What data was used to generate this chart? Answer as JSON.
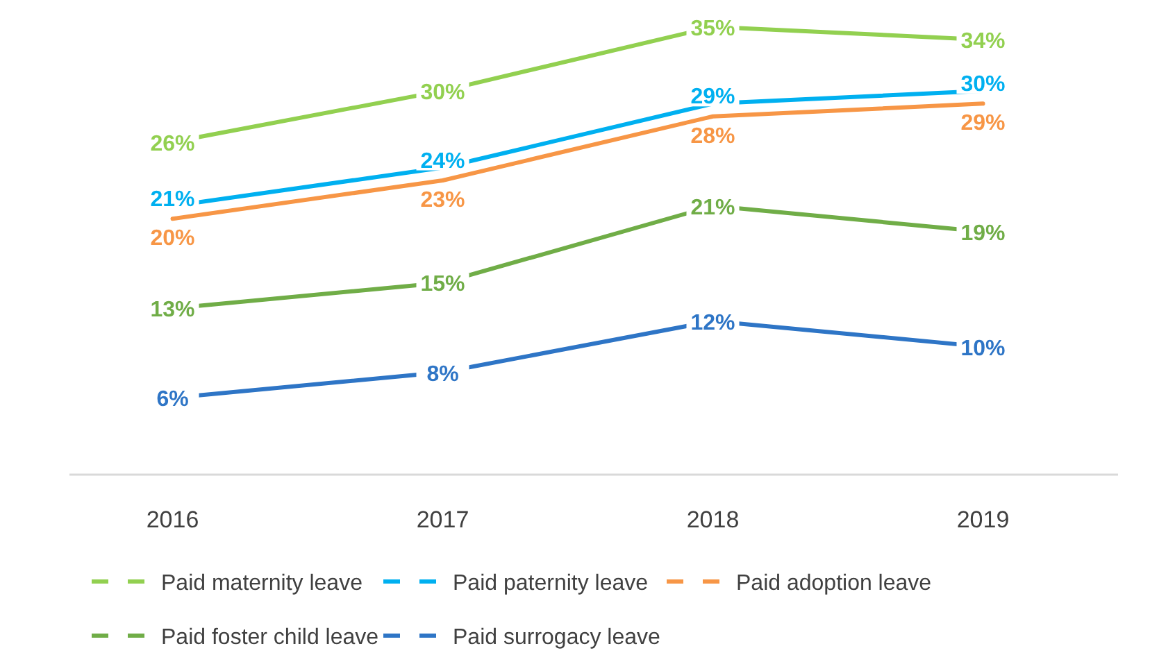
{
  "chart_data": {
    "type": "line",
    "categories": [
      "2016",
      "2017",
      "2018",
      "2019"
    ],
    "tick_labels": "x",
    "legend": "bottom",
    "series": [
      {
        "name": "Paid maternity leave",
        "color": "#92d050",
        "values": [
          26,
          30,
          35,
          34
        ],
        "value_labels": [
          "26%",
          "30%",
          "35%",
          "34%"
        ]
      },
      {
        "name": "Paid paternity leave",
        "color": "#00b0f0",
        "values": [
          21,
          24,
          29,
          30
        ],
        "value_labels": [
          "21%",
          "24%",
          "29%",
          "30%"
        ]
      },
      {
        "name": "Paid adoption leave",
        "color": "#f79646",
        "values": [
          20,
          23,
          28,
          29
        ],
        "value_labels": [
          "20%",
          "23%",
          "28%",
          "29%"
        ]
      },
      {
        "name": "Paid foster child leave",
        "color": "#70ad47",
        "values": [
          13,
          15,
          21,
          19
        ],
        "value_labels": [
          "13%",
          "15%",
          "21%",
          "19%"
        ]
      },
      {
        "name": "Paid surrogacy leave",
        "color": "#2e75c6",
        "values": [
          6,
          8,
          12,
          10
        ],
        "value_labels": [
          "6%",
          "8%",
          "12%",
          "10%"
        ]
      }
    ]
  }
}
